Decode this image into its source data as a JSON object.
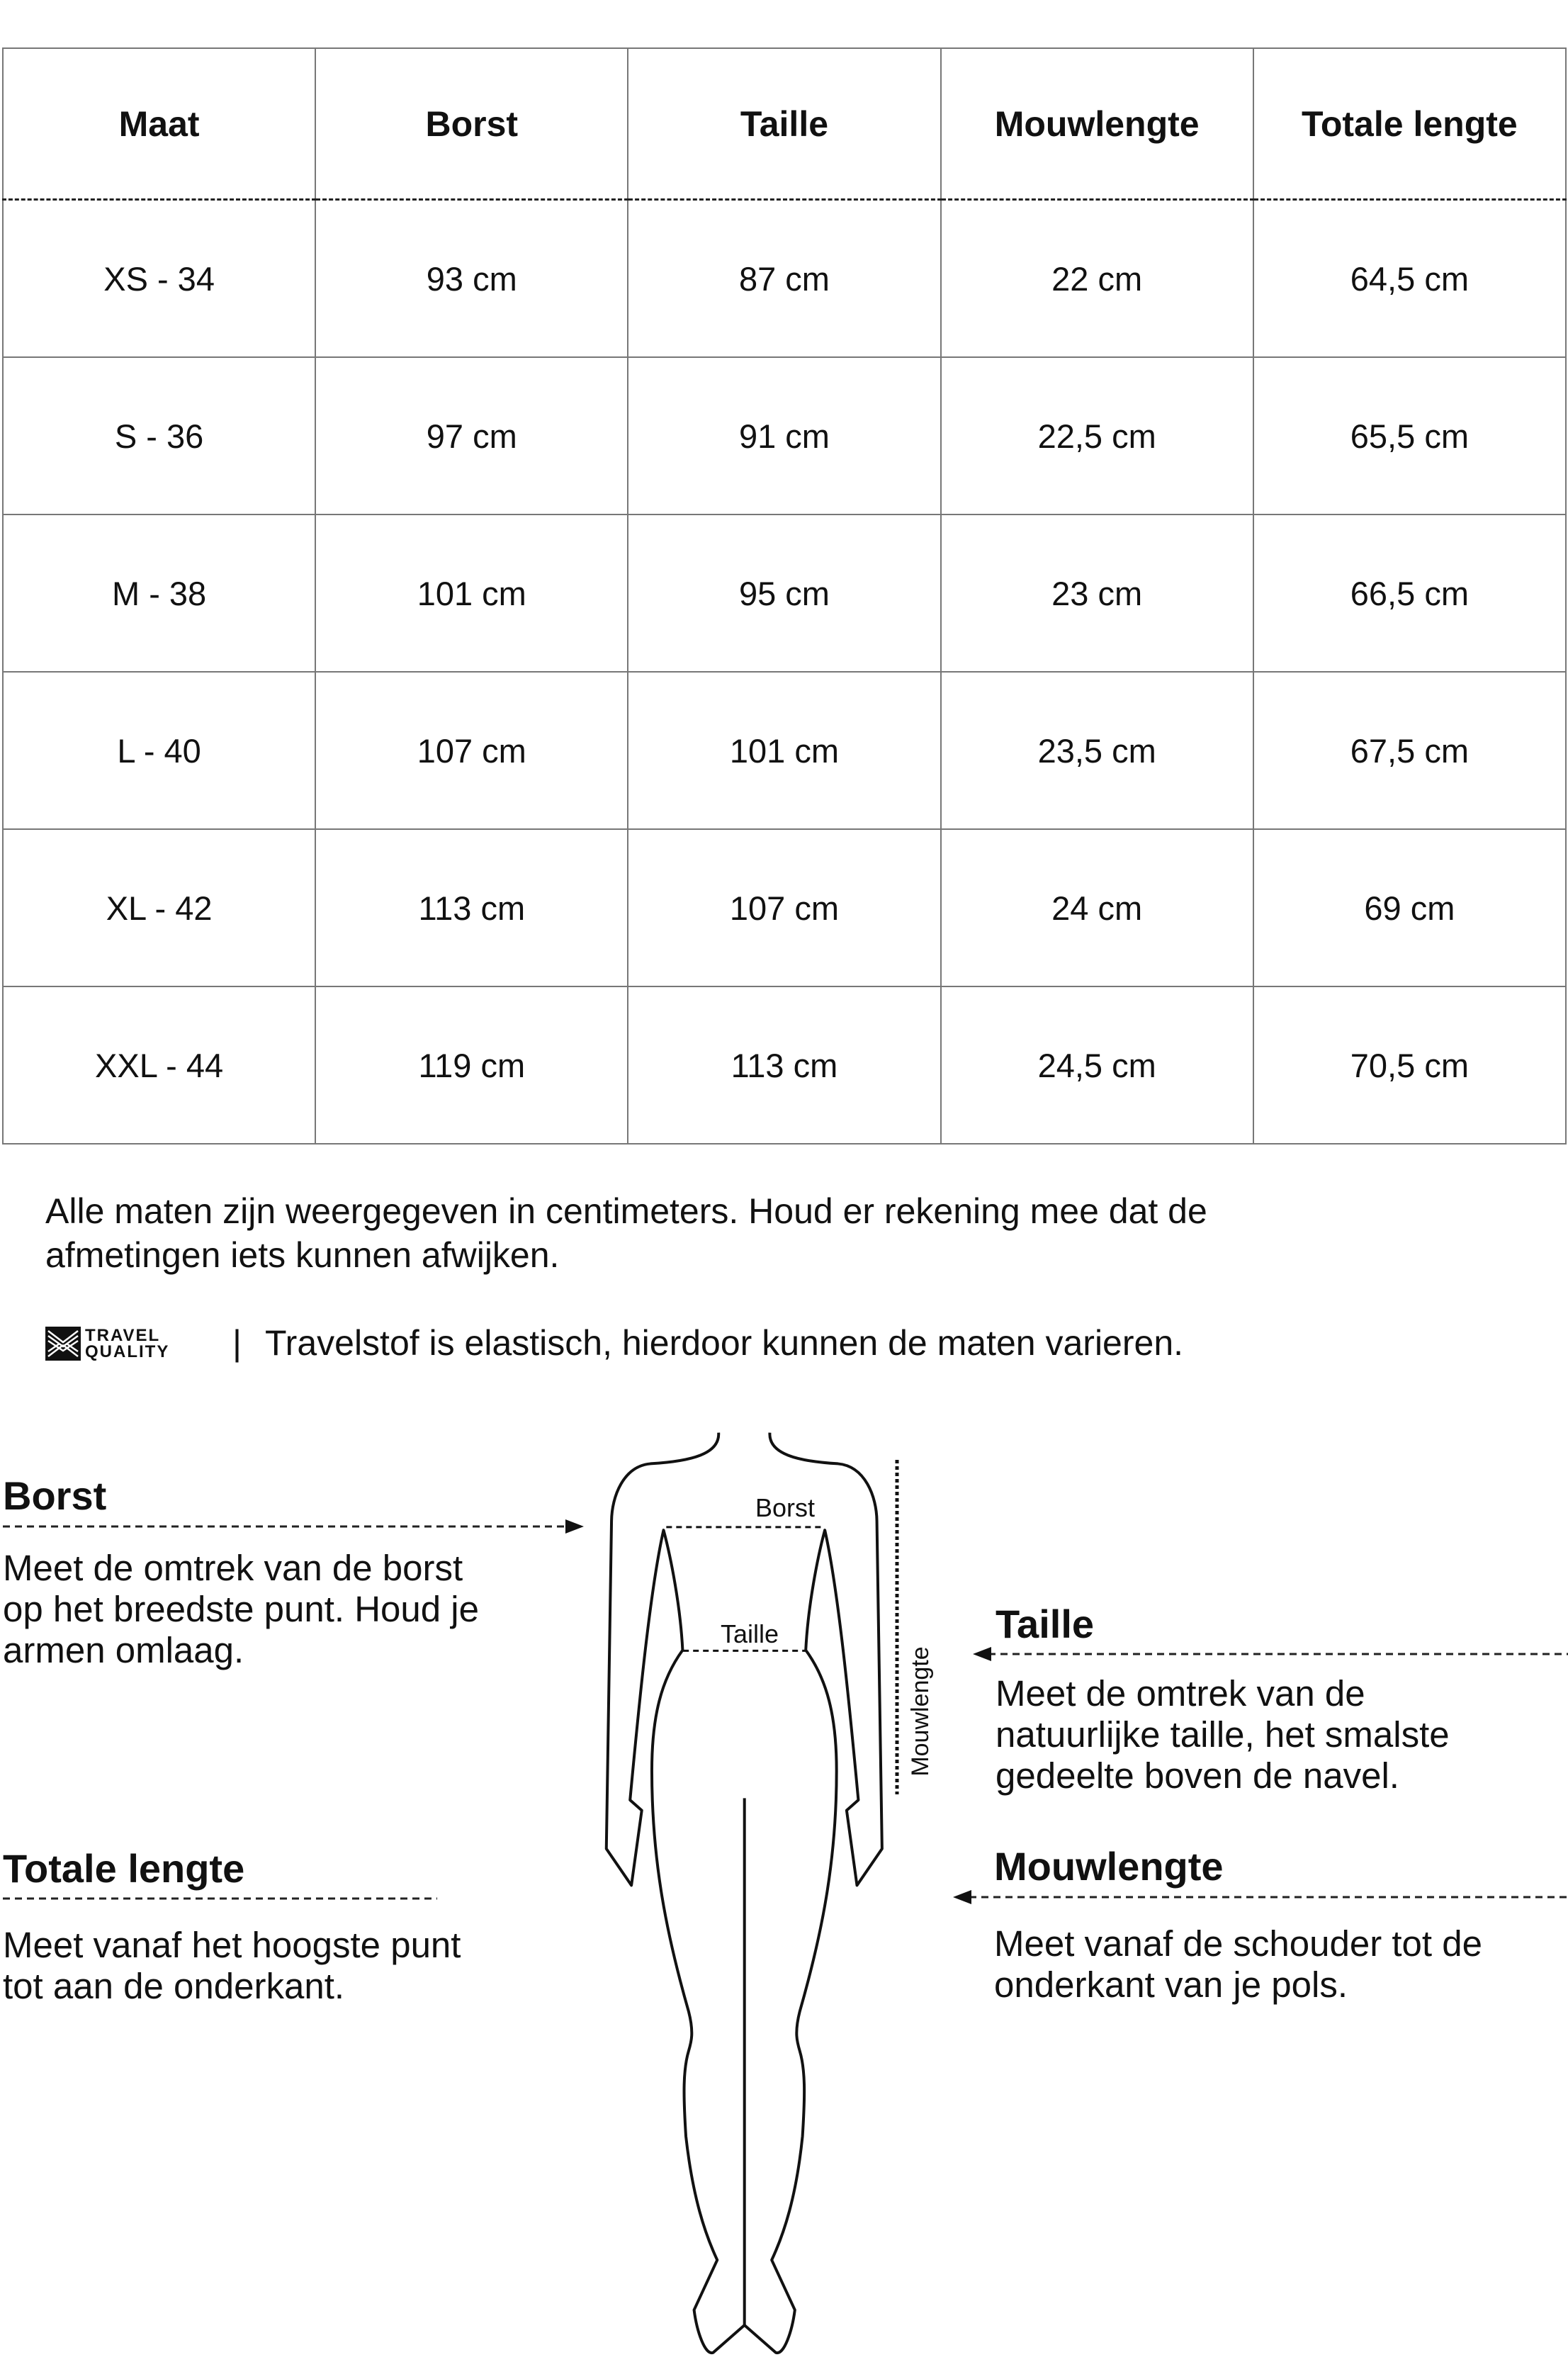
{
  "table": {
    "headers": [
      "Maat",
      "Borst",
      "Taille",
      "Mouwlengte",
      "Totale lengte"
    ],
    "rows": [
      [
        "XS - 34",
        "93 cm",
        "87 cm",
        "22 cm",
        "64,5 cm"
      ],
      [
        "S - 36",
        "97 cm",
        "91 cm",
        "22,5 cm",
        "65,5 cm"
      ],
      [
        "M - 38",
        "101 cm",
        "95 cm",
        "23 cm",
        "66,5 cm"
      ],
      [
        "L - 40",
        "107 cm",
        "101 cm",
        "23,5 cm",
        "67,5 cm"
      ],
      [
        "XL - 42",
        "113 cm",
        "107 cm",
        "24 cm",
        "69 cm"
      ],
      [
        "XXL - 44",
        "119 cm",
        "113 cm",
        "24,5 cm",
        "70,5 cm"
      ]
    ]
  },
  "note": {
    "line1": "Alle maten zijn weergegeven in centimeters. Houd er rekening mee dat de",
    "line2": "afmetingen iets kunnen afwijken."
  },
  "brand": {
    "logo_line1": "TRAVEL",
    "logo_line2": "QUALITY",
    "separator": "|",
    "text": "Travelstof is elastisch, hierdoor kunnen de maten varieren."
  },
  "figure": {
    "label_borst": "Borst",
    "label_taille": "Taille",
    "label_mouwlengte": "Mouwlengte"
  },
  "sections": {
    "borst": {
      "title": "Borst",
      "lines": [
        "Meet de omtrek van de borst",
        "op het breedste punt. Houd je",
        "armen omlaag."
      ]
    },
    "taille": {
      "title": "Taille",
      "lines": [
        "Meet de omtrek van de",
        "natuurlijke taille, het smalste",
        "gedeelte boven de navel."
      ]
    },
    "totale_lengte": {
      "title": "Totale lengte",
      "lines": [
        "Meet vanaf het hoogste punt",
        "tot aan de onderkant."
      ]
    },
    "mouwlengte": {
      "title": "Mouwlengte",
      "lines": [
        "Meet vanaf de schouder tot de",
        "onderkant van je pols."
      ]
    }
  }
}
